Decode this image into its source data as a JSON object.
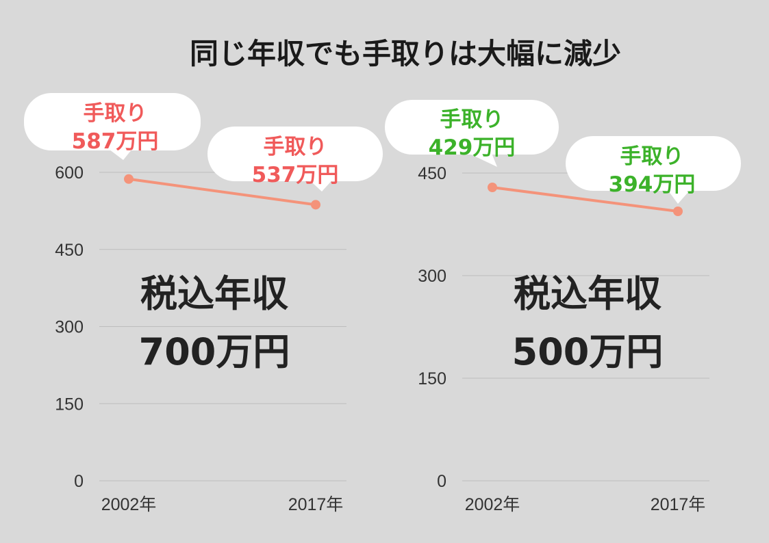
{
  "title": "同じ年収でも手取りは大幅に減少",
  "colors": {
    "line": "#f4937a",
    "red_text": "#f05a5a",
    "green_text": "#3cb22a"
  },
  "chart_data": [
    {
      "type": "line",
      "x": [
        "2002年",
        "2017年"
      ],
      "series": [
        {
          "values": [
            587,
            537
          ]
        }
      ],
      "yticks": [
        0,
        150,
        300,
        450,
        600
      ],
      "ylim": [
        0,
        700
      ],
      "grid": true,
      "center_label": [
        "税込年収",
        "700万円"
      ],
      "callouts": [
        {
          "line1": "手取り",
          "line2": "587万円"
        },
        {
          "line1": "手取り",
          "line2": "537万円"
        }
      ]
    },
    {
      "type": "line",
      "x": [
        "2002年",
        "2017年"
      ],
      "series": [
        {
          "values": [
            429,
            394
          ]
        }
      ],
      "yticks": [
        0,
        150,
        300,
        450
      ],
      "ylim": [
        0,
        500
      ],
      "grid": true,
      "center_label": [
        "税込年収",
        "500万円"
      ],
      "callouts": [
        {
          "line1": "手取り",
          "line2": "429万円"
        },
        {
          "line1": "手取り",
          "line2": "394万円"
        }
      ]
    }
  ]
}
